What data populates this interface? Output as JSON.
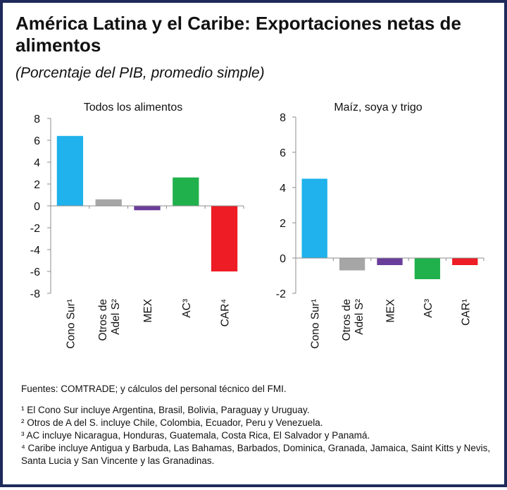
{
  "header": {
    "title": "América Latina y el Caribe: Exportaciones netas de alimentos",
    "subtitle": "(Porcentaje del PIB, promedio simple)"
  },
  "chart_data": [
    {
      "type": "bar",
      "title": "Todos los alimentos",
      "categories": [
        [
          "Cono Sur¹"
        ],
        [
          "Otros de",
          "Adel S²"
        ],
        [
          "MEX"
        ],
        [
          "AC³"
        ],
        [
          "CAR⁴"
        ]
      ],
      "values": [
        6.4,
        0.6,
        -0.4,
        2.6,
        -6.0
      ],
      "colors": [
        "#1fb2ec",
        "#a6a6a6",
        "#6a3d9a",
        "#21b14c",
        "#ee1c24"
      ],
      "ylim": [
        -8,
        8
      ],
      "yticks": [
        8,
        6,
        4,
        2,
        0,
        -2,
        -4,
        -6,
        -8
      ],
      "xlabel": "",
      "ylabel": ""
    },
    {
      "type": "bar",
      "title": "Maíz, soya y trigo",
      "categories": [
        [
          "Cono Sur¹"
        ],
        [
          "Otros de",
          "Adel S²"
        ],
        [
          "MEX"
        ],
        [
          "AC³"
        ],
        [
          "CAR¹"
        ]
      ],
      "values": [
        4.5,
        -0.7,
        -0.4,
        -1.2,
        -0.4
      ],
      "colors": [
        "#1fb2ec",
        "#a6a6a6",
        "#6a3d9a",
        "#21b14c",
        "#ee1c24"
      ],
      "ylim": [
        -2,
        8
      ],
      "yticks": [
        8,
        6,
        4,
        2,
        0,
        -2
      ],
      "xlabel": "",
      "ylabel": ""
    }
  ],
  "notes": {
    "source": "Fuentes: COMTRADE; y cálculos del personal técnico del FMI.",
    "footnotes": [
      "¹ El Cono Sur incluye Argentina, Brasil, Bolivia, Paraguay y Uruguay.",
      "² Otros de A del S. incluye Chile, Colombia, Ecuador, Peru y Venezuela.",
      "³ AC incluye Nicaragua, Honduras, Guatemala, Costa Rica, El Salvador y Panamá.",
      "⁴ Caribe incluye Antigua y Barbuda, Las Bahamas, Barbados, Dominica, Granada, Jamaica, Saint Kitts y Nevis, Santa Lucia y San Vincente y las Granadinas."
    ]
  }
}
